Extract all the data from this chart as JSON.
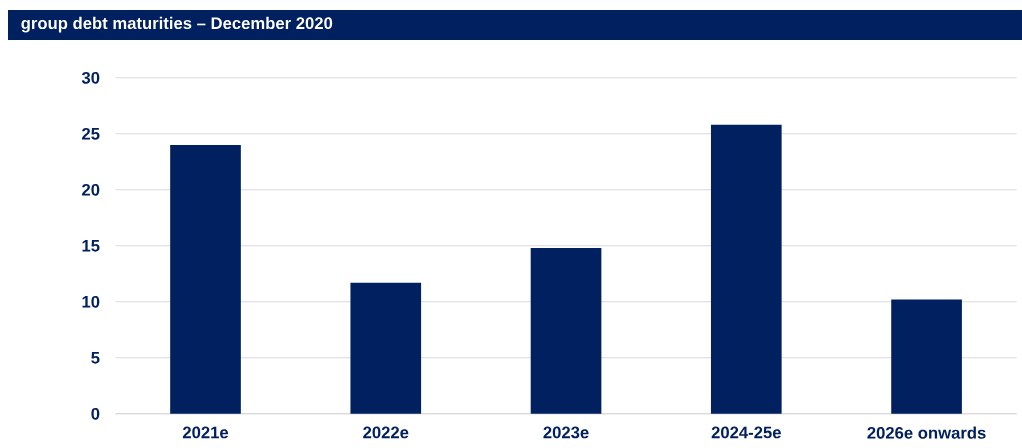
{
  "chart_data": {
    "type": "bar",
    "title": "group debt maturities – December 2020",
    "categories": [
      "2021e",
      "2022e",
      "2023e",
      "2024-25e",
      "2026e onwards"
    ],
    "values": [
      24.0,
      11.7,
      14.8,
      25.8,
      10.2
    ],
    "color": "#002060",
    "ylim": [
      0,
      30
    ],
    "yticks": [
      0,
      5,
      10,
      15,
      20,
      25,
      30
    ],
    "grid": "y"
  }
}
